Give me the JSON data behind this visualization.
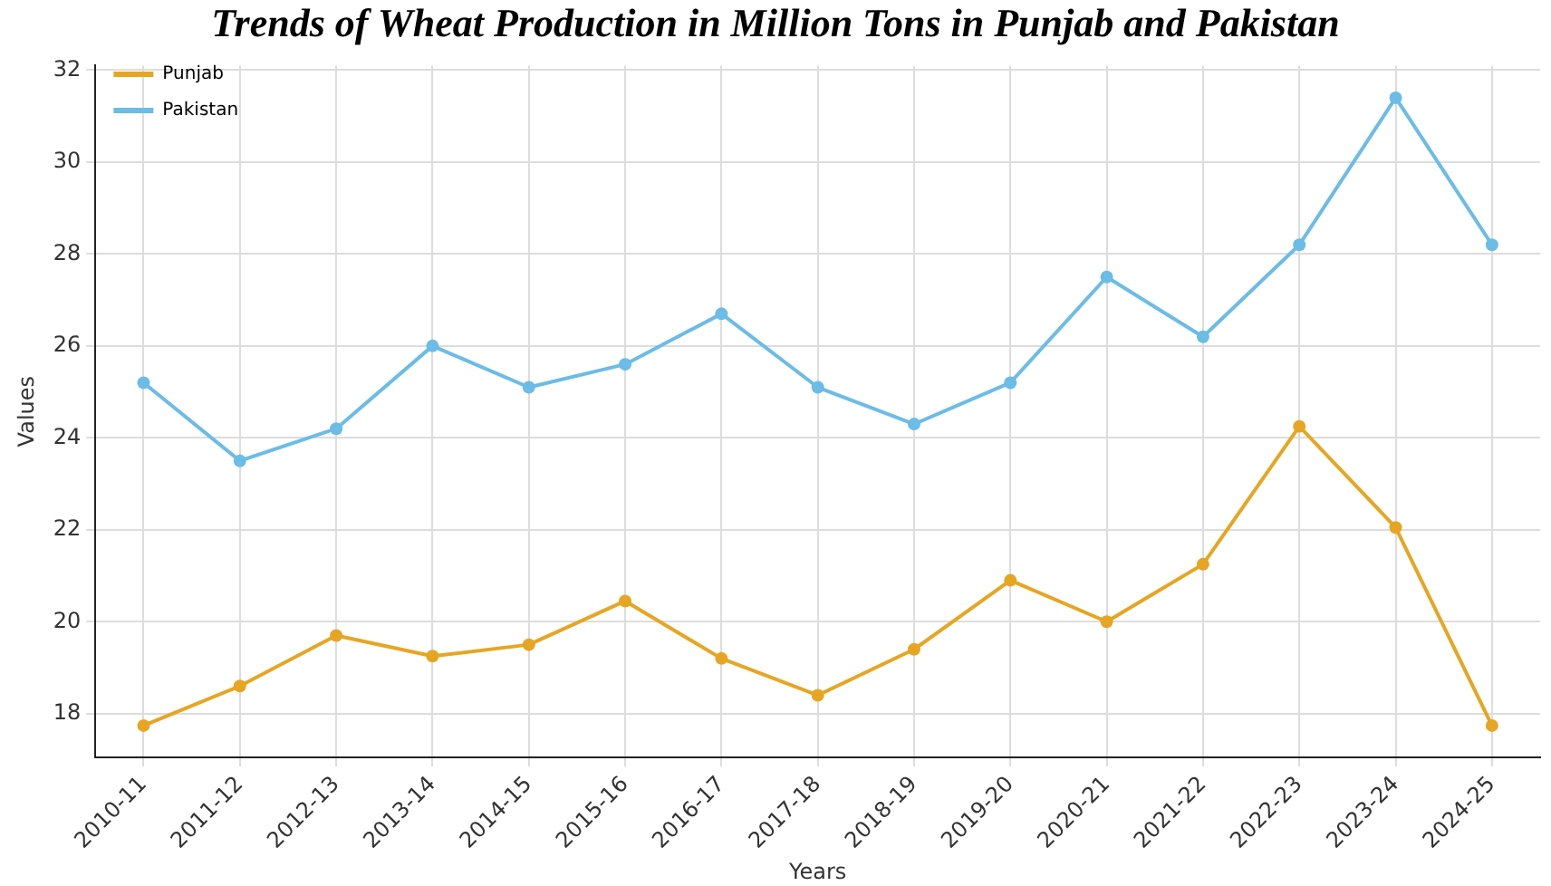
{
  "chart_data": {
    "type": "line",
    "title": "Trends of Wheat Production in Million Tons in Punjab and Pakistan",
    "xlabel": "Years",
    "ylabel": "Values",
    "categories": [
      "2010-11",
      "2011-12",
      "2012-13",
      "2013-14",
      "2014-15",
      "2015-16",
      "2016-17",
      "2017-18",
      "2018-19",
      "2019-20",
      "2020-21",
      "2021-22",
      "2022-23",
      "2023-24",
      "2024-25"
    ],
    "series": [
      {
        "name": "Punjab",
        "color": "#e6a623",
        "values": [
          17.74,
          18.6,
          19.7,
          19.25,
          19.5,
          20.45,
          19.2,
          18.4,
          19.4,
          20.9,
          20.0,
          21.25,
          24.25,
          22.05,
          17.74
        ]
      },
      {
        "name": "Pakistan",
        "color": "#6bbce6",
        "values": [
          25.2,
          23.5,
          24.2,
          26.0,
          25.1,
          25.6,
          26.7,
          25.1,
          24.3,
          25.2,
          27.5,
          26.2,
          28.2,
          31.4,
          28.2
        ]
      }
    ],
    "ylim": [
      17.05,
      32.1
    ],
    "yticks": [
      18,
      20,
      22,
      24,
      26,
      28,
      30,
      32
    ],
    "grid": true,
    "legend": "top left",
    "marker": "circle",
    "line_style": "solid"
  }
}
